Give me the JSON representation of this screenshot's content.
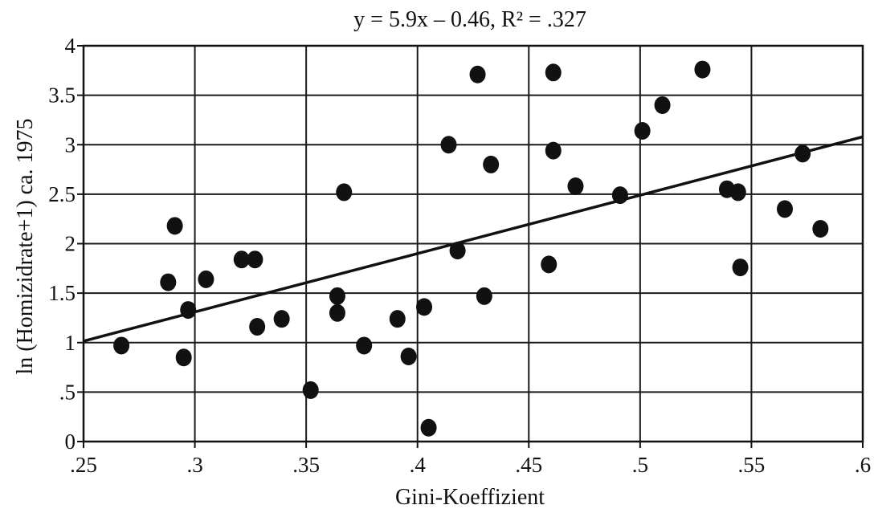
{
  "chart_data": {
    "type": "scatter",
    "title": "y = 5.9x – 0.46, R² = .327",
    "xlabel": "Gini-Koeffizient",
    "ylabel": "ln (Homizidrate+1) ca. 1975",
    "xlim": [
      0.25,
      0.6
    ],
    "ylim": [
      0,
      4
    ],
    "x_ticks": [
      0.25,
      0.3,
      0.35,
      0.4,
      0.45,
      0.5,
      0.55,
      0.6
    ],
    "x_tick_labels": [
      ".25",
      ".3",
      ".35",
      ".4",
      ".45",
      ".5",
      ".55",
      ".6"
    ],
    "y_ticks": [
      0,
      0.5,
      1,
      1.5,
      2,
      2.5,
      3,
      3.5,
      4
    ],
    "y_tick_labels": [
      "0",
      ".5",
      "1",
      "1.5",
      "2",
      "2.5",
      "3",
      "3.5",
      "4"
    ],
    "grid": true,
    "trendline": {
      "slope": 5.9,
      "intercept": -0.46
    },
    "points": [
      {
        "x": 0.267,
        "y": 0.97
      },
      {
        "x": 0.288,
        "y": 1.61
      },
      {
        "x": 0.291,
        "y": 2.18
      },
      {
        "x": 0.295,
        "y": 0.85
      },
      {
        "x": 0.297,
        "y": 1.33
      },
      {
        "x": 0.305,
        "y": 1.64
      },
      {
        "x": 0.321,
        "y": 1.84
      },
      {
        "x": 0.327,
        "y": 1.84
      },
      {
        "x": 0.328,
        "y": 1.16
      },
      {
        "x": 0.339,
        "y": 1.24
      },
      {
        "x": 0.352,
        "y": 0.52
      },
      {
        "x": 0.364,
        "y": 1.47
      },
      {
        "x": 0.364,
        "y": 1.3
      },
      {
        "x": 0.367,
        "y": 2.52
      },
      {
        "x": 0.376,
        "y": 0.97
      },
      {
        "x": 0.391,
        "y": 1.24
      },
      {
        "x": 0.396,
        "y": 0.86
      },
      {
        "x": 0.403,
        "y": 1.36
      },
      {
        "x": 0.405,
        "y": 0.14
      },
      {
        "x": 0.414,
        "y": 3.0
      },
      {
        "x": 0.418,
        "y": 1.93
      },
      {
        "x": 0.427,
        "y": 3.71
      },
      {
        "x": 0.43,
        "y": 1.47
      },
      {
        "x": 0.433,
        "y": 2.8
      },
      {
        "x": 0.459,
        "y": 1.79
      },
      {
        "x": 0.461,
        "y": 3.73
      },
      {
        "x": 0.461,
        "y": 2.94
      },
      {
        "x": 0.471,
        "y": 2.58
      },
      {
        "x": 0.491,
        "y": 2.49
      },
      {
        "x": 0.501,
        "y": 3.14
      },
      {
        "x": 0.51,
        "y": 3.4
      },
      {
        "x": 0.528,
        "y": 3.76
      },
      {
        "x": 0.539,
        "y": 2.55
      },
      {
        "x": 0.544,
        "y": 2.52
      },
      {
        "x": 0.545,
        "y": 1.76
      },
      {
        "x": 0.565,
        "y": 2.35
      },
      {
        "x": 0.573,
        "y": 2.91
      },
      {
        "x": 0.581,
        "y": 2.15
      }
    ]
  }
}
